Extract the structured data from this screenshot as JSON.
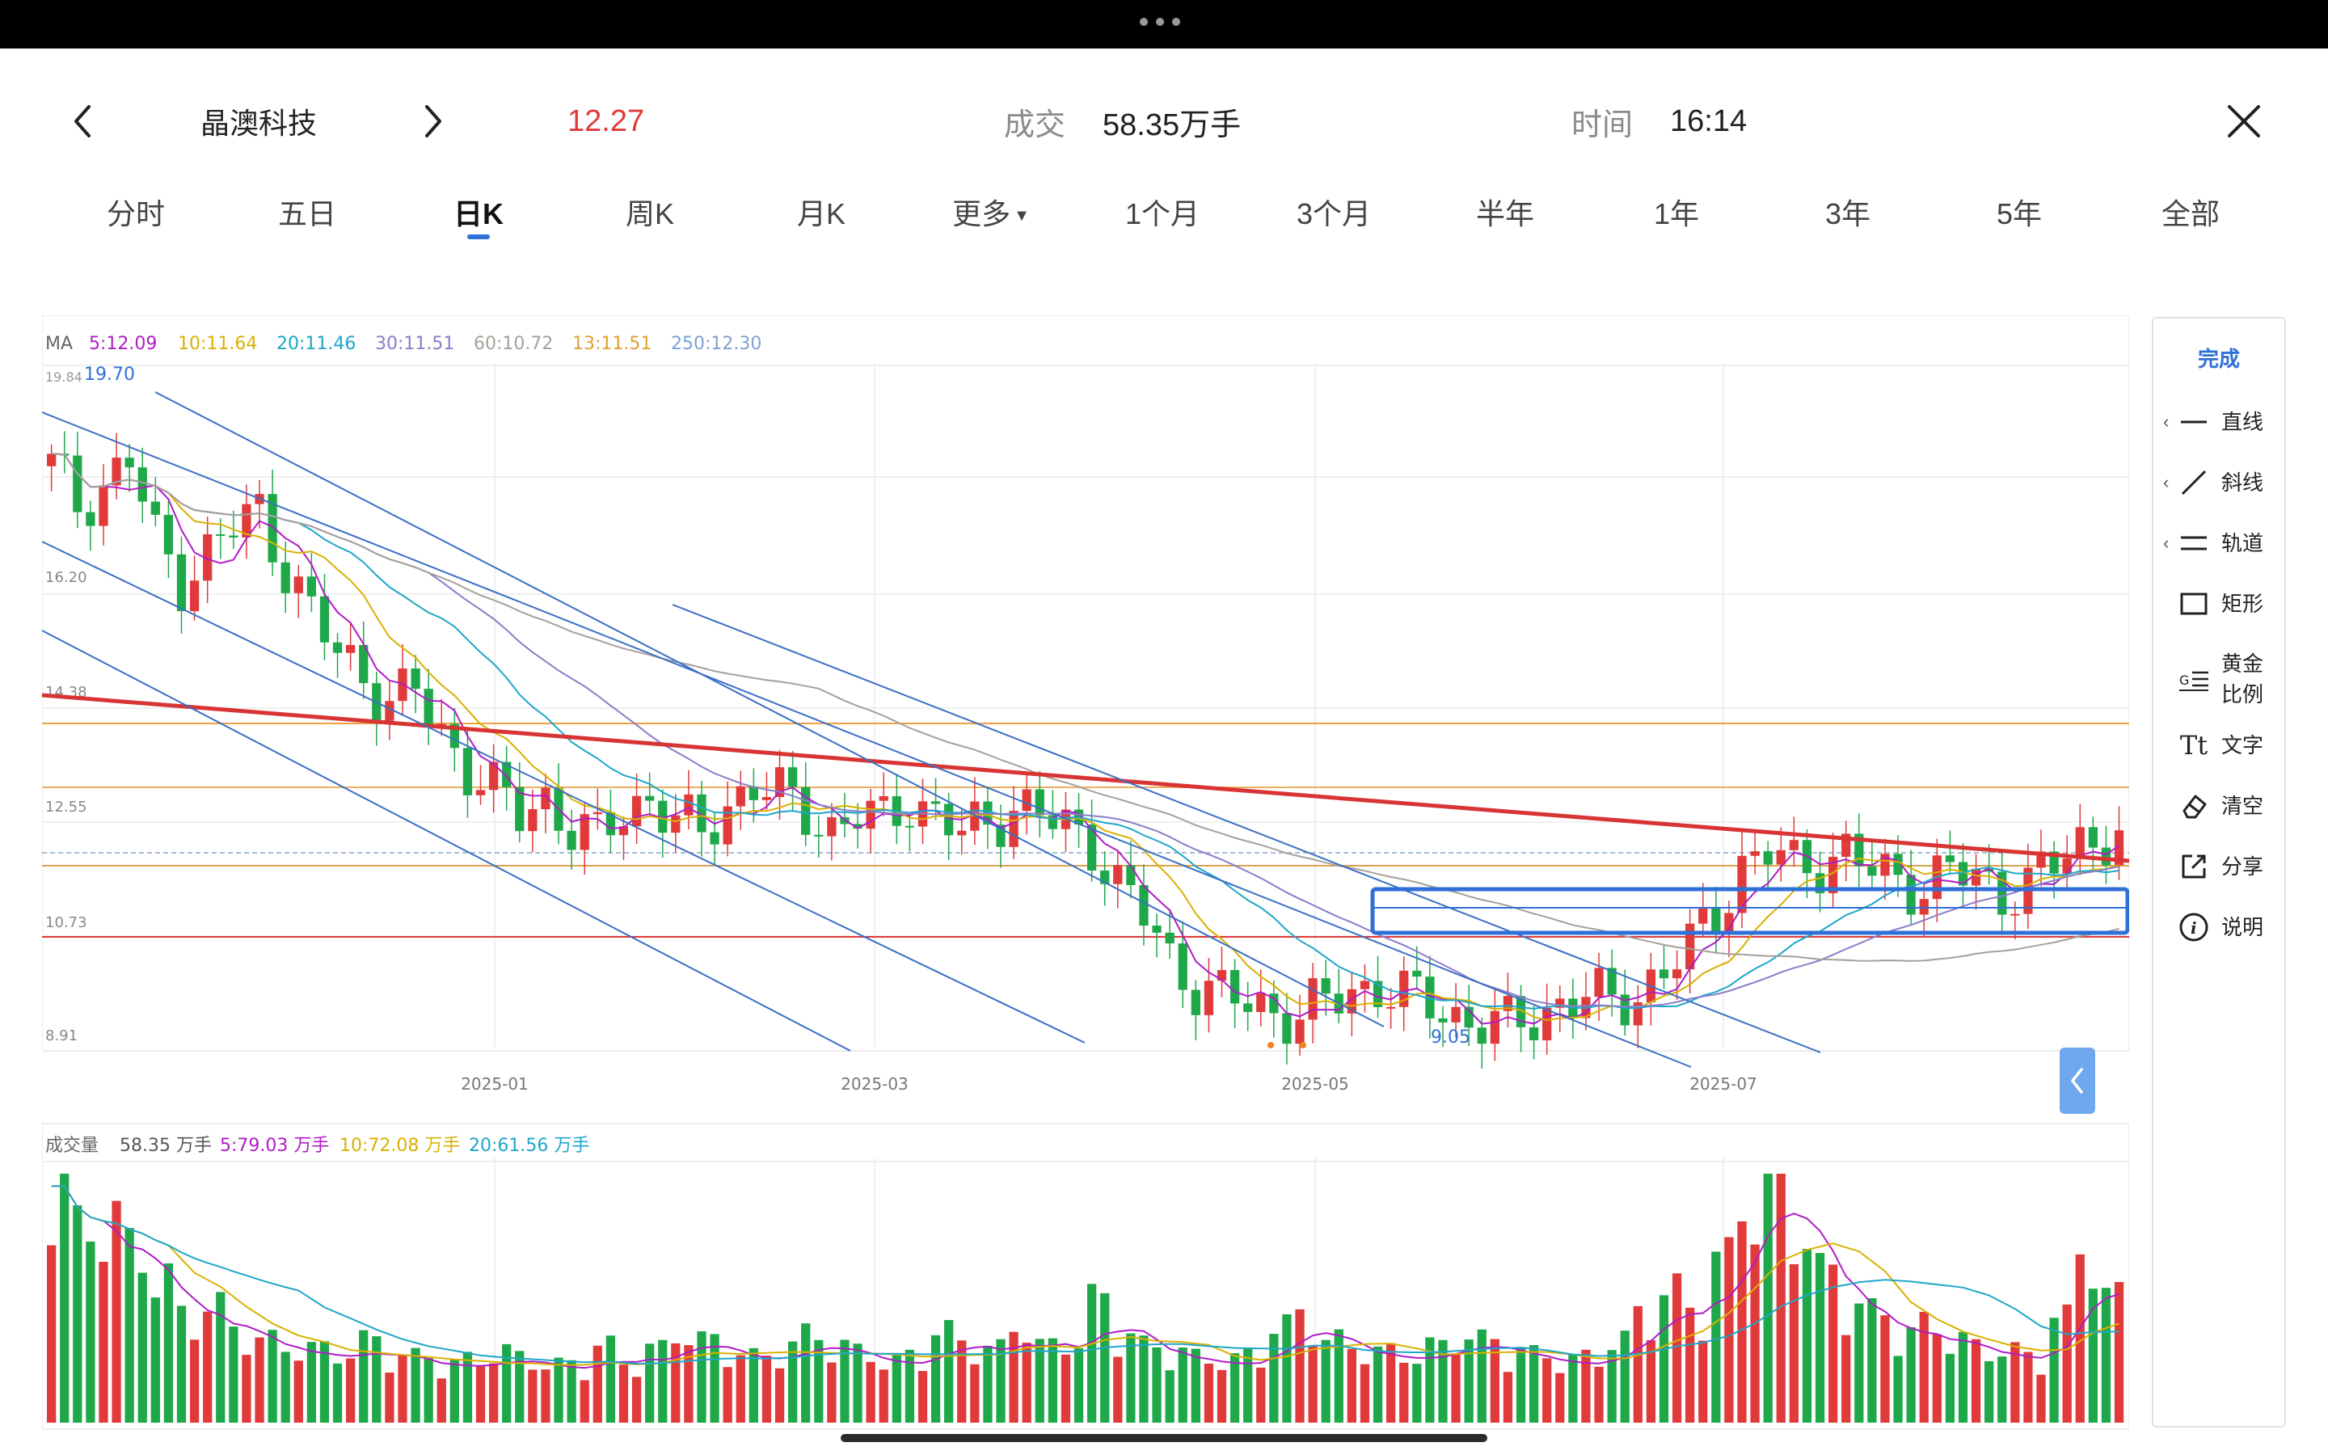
{
  "header": {
    "stock_name": "晶澳科技",
    "price": "12.27",
    "volume_label": "成交",
    "volume_value": "58.35万手",
    "time_label": "时间",
    "time_value": "16:14"
  },
  "tabs": [
    {
      "label": "分时"
    },
    {
      "label": "五日"
    },
    {
      "label": "日K",
      "active": true
    },
    {
      "label": "周K"
    },
    {
      "label": "月K"
    },
    {
      "label": "更多"
    },
    {
      "label": "1个月"
    },
    {
      "label": "3个月"
    },
    {
      "label": "半年"
    },
    {
      "label": "1年"
    },
    {
      "label": "3年"
    },
    {
      "label": "5年"
    },
    {
      "label": "全部"
    }
  ],
  "ma_legend": {
    "title": "MA",
    "items": [
      {
        "text": "5:12.09",
        "color": "#b01cc6"
      },
      {
        "text": "10:11.64",
        "color": "#d9b100"
      },
      {
        "text": "20:11.46",
        "color": "#1ea6c9"
      },
      {
        "text": "30:11.51",
        "color": "#8c7dc9"
      },
      {
        "text": "60:10.72",
        "color": "#a6a09a"
      },
      {
        "text": "13:11.51",
        "color": "#e0a030"
      },
      {
        "text": "250:12.30",
        "color": "#7ea1d8"
      }
    ]
  },
  "price_axis": [
    "16.20",
    "14.38",
    "12.55",
    "10.73",
    "8.91"
  ],
  "annotations": {
    "high_top": "19.84",
    "high_mark": "19.70",
    "low_mark": "9.05"
  },
  "date_axis": [
    "2025-01",
    "2025-03",
    "2025-05",
    "2025-07"
  ],
  "volume_legend": {
    "title": "成交量",
    "items": [
      {
        "text": "58.35 万手",
        "color": "#555555"
      },
      {
        "text": "5:79.03 万手",
        "color": "#b01cc6"
      },
      {
        "text": "10:72.08 万手",
        "color": "#d9b100"
      },
      {
        "text": "20:61.56 万手",
        "color": "#1ea6c9"
      }
    ]
  },
  "tools": {
    "done": "完成",
    "items": [
      {
        "name": "line-tool",
        "label": "直线",
        "icon": "line-icon",
        "has_chevron": true
      },
      {
        "name": "ray-tool",
        "label": "斜线",
        "icon": "slant-line-icon",
        "has_chevron": true
      },
      {
        "name": "channel-tool",
        "label": "轨道",
        "icon": "channel-icon",
        "has_chevron": true
      },
      {
        "name": "rect-tool",
        "label": "矩形",
        "icon": "rectangle-icon",
        "has_chevron": false
      },
      {
        "name": "golden-ratio-tool",
        "label": "黄金\n比例",
        "icon": "golden-ratio-icon",
        "has_chevron": false
      },
      {
        "name": "text-tool",
        "label": "文字",
        "icon": "text-icon",
        "has_chevron": false
      },
      {
        "name": "clear-tool",
        "label": "清空",
        "icon": "eraser-icon",
        "has_chevron": false
      },
      {
        "name": "share-tool",
        "label": "分享",
        "icon": "share-icon",
        "has_chevron": false
      },
      {
        "name": "help-tool",
        "label": "说明",
        "icon": "info-icon",
        "has_chevron": false
      }
    ]
  },
  "colors": {
    "up": "#e03a3a",
    "down": "#1fa84a",
    "accent": "#2f6fd8",
    "price": "#e03a3a"
  },
  "chart_data": {
    "type": "candlestick",
    "ylim": [
      8.91,
      19.84
    ],
    "close_seed": [
      18.2,
      17.6,
      17.9,
      18.3,
      17.0,
      16.4,
      16.8,
      17.2,
      17.5,
      16.6,
      15.8,
      15.2,
      14.9,
      14.4,
      14.6,
      13.9,
      13.4,
      13.0,
      12.6,
      12.9,
      12.4,
      12.2,
      12.7,
      12.9,
      12.5,
      12.3,
      12.8,
      13.1,
      12.9,
      12.7,
      12.4,
      12.6,
      12.5,
      12.9,
      12.6,
      12.3,
      12.5,
      12.8,
      12.6,
      12.4,
      12.2,
      11.5,
      11.0,
      10.3,
      9.9,
      9.7,
      9.6,
      9.5,
      9.4,
      9.6,
      9.8,
      9.9,
      9.7,
      9.6,
      9.4,
      9.3,
      9.2,
      9.4,
      9.6,
      9.7,
      9.6,
      9.8,
      10.1,
      10.5,
      11.1,
      11.8,
      12.0,
      11.8,
      11.9,
      12.0,
      11.7,
      11.6,
      11.5,
      11.7,
      11.6,
      11.4,
      11.5,
      11.8,
      12.2,
      12.3
    ],
    "volume_seed": [
      95,
      70,
      75,
      64,
      52,
      40,
      42,
      35,
      30,
      28,
      27,
      26,
      30,
      25,
      24,
      22,
      23,
      26,
      24,
      21,
      22,
      28,
      22,
      27,
      33,
      30,
      26,
      24,
      29,
      32,
      28,
      26,
      22,
      25,
      33,
      30,
      27,
      36,
      28,
      30,
      45,
      33,
      28,
      26,
      24,
      23,
      25,
      35,
      40,
      30,
      28,
      26,
      25,
      28,
      32,
      30,
      27,
      25,
      23,
      24,
      30,
      40,
      48,
      42,
      60,
      80,
      95,
      70,
      55,
      44,
      40,
      33,
      36,
      30,
      28,
      26,
      25,
      38,
      64,
      46
    ],
    "overlay_lines": "drawn trend and channel annotations"
  }
}
